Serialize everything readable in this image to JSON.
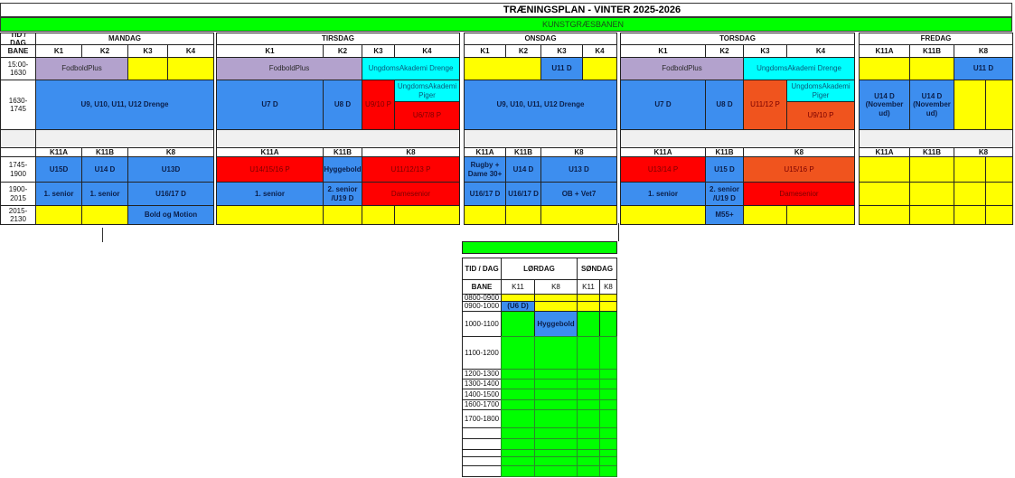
{
  "colors": {
    "w": "#ffffff",
    "g": "#f0f0f0",
    "y": "#ffff00",
    "b": "#3d8eef",
    "p": "#b3a2cd",
    "c": "#00ffff",
    "r": "#ff0000",
    "o": "#f0541e",
    "gr": "#00ff00"
  },
  "main": {
    "title": "TRÆNINGSPLAN - VINTER 2025-2026",
    "banner": "KUNSTGRÆSBANEN",
    "cells": [
      {
        "t": "TID / DAG",
        "c": "w"
      },
      {
        "t": "BANE",
        "c": "w"
      },
      {
        "t": "15:00-1630",
        "c": "w"
      },
      {
        "t": "1630-1745",
        "c": "w"
      },
      {
        "t": "",
        "c": "g"
      },
      {
        "t": "",
        "c": "w"
      },
      {
        "t": "1745-1900",
        "c": "w"
      },
      {
        "t": "1900-2015",
        "c": "w"
      },
      {
        "t": "2015-2130",
        "c": "w"
      },
      {
        "t": "MANDAG",
        "c": "w"
      },
      {
        "t": "TIRSDAG",
        "c": "w"
      },
      {
        "t": "ONSDAG",
        "c": "w"
      },
      {
        "t": "TORSDAG",
        "c": "w"
      },
      {
        "t": "FREDAG",
        "c": "w"
      },
      {
        "t": "K1",
        "c": "w"
      },
      {
        "t": "K2",
        "c": "w"
      },
      {
        "t": "K3",
        "c": "w"
      },
      {
        "t": "K4",
        "c": "w"
      },
      {
        "t": "K1",
        "c": "w"
      },
      {
        "t": "K2",
        "c": "w"
      },
      {
        "t": "K3",
        "c": "w"
      },
      {
        "t": "K4",
        "c": "w"
      },
      {
        "t": "K1",
        "c": "w"
      },
      {
        "t": "K2",
        "c": "w"
      },
      {
        "t": "K3",
        "c": "w"
      },
      {
        "t": "K4",
        "c": "w"
      },
      {
        "t": "K1",
        "c": "w"
      },
      {
        "t": "K2",
        "c": "w"
      },
      {
        "t": "K3",
        "c": "w"
      },
      {
        "t": "K4",
        "c": "w"
      },
      {
        "t": "K11A",
        "c": "w"
      },
      {
        "t": "K11B",
        "c": "w"
      },
      {
        "t": "K8",
        "c": "w"
      },
      {
        "t": "",
        "c": "g"
      },
      {
        "t": "",
        "c": "g"
      },
      {
        "t": "",
        "c": "g"
      },
      {
        "t": "",
        "c": "g"
      },
      {
        "t": "",
        "c": "g"
      },
      {
        "t": "K11A",
        "c": "w"
      },
      {
        "t": "K11B",
        "c": "w"
      },
      {
        "t": "K8",
        "c": "w"
      },
      {
        "t": "K11A",
        "c": "w"
      },
      {
        "t": "K11B",
        "c": "w"
      },
      {
        "t": "K8",
        "c": "w"
      },
      {
        "t": "K11A",
        "c": "w"
      },
      {
        "t": "K11B",
        "c": "w"
      },
      {
        "t": "K8",
        "c": "w"
      },
      {
        "t": "K11A",
        "c": "w"
      },
      {
        "t": "K11B",
        "c": "w"
      },
      {
        "t": "K8",
        "c": "w"
      },
      {
        "t": "K11A",
        "c": "w"
      },
      {
        "t": "K11B",
        "c": "w"
      },
      {
        "t": "K8",
        "c": "w"
      },
      {
        "t": "FodboldPlus",
        "c": "p"
      },
      {
        "t": "",
        "c": "y"
      },
      {
        "t": "",
        "c": "y"
      },
      {
        "t": "U9, U10, U11, U12 Drenge",
        "c": "b"
      },
      {
        "t": "U15D",
        "c": "b"
      },
      {
        "t": "U14 D",
        "c": "b"
      },
      {
        "t": "U13D",
        "c": "b"
      },
      {
        "t": "1. senior",
        "c": "b"
      },
      {
        "t": "1. senior",
        "c": "b"
      },
      {
        "t": "U16/17 D",
        "c": "b"
      },
      {
        "t": "",
        "c": "y"
      },
      {
        "t": "",
        "c": "y"
      },
      {
        "t": "Bold og Motion",
        "c": "b"
      },
      {
        "t": "FodboldPlus",
        "c": "p"
      },
      {
        "t": "UngdomsAkademi Drenge",
        "c": "c"
      },
      {
        "t": "U7 D",
        "c": "b"
      },
      {
        "t": "U8 D",
        "c": "b"
      },
      {
        "t": "U9/10 P",
        "c": "r"
      },
      {
        "t": "UngdomsAkademi Piger",
        "c": "c"
      },
      {
        "t": "U6/7/8 P",
        "c": "r"
      },
      {
        "t": "U14/15/16 P",
        "c": "r"
      },
      {
        "t": "Hyggebold",
        "c": "b"
      },
      {
        "t": "U11/12/13 P",
        "c": "r"
      },
      {
        "t": "1. senior",
        "c": "b"
      },
      {
        "t": "2. senior /U19 D",
        "c": "b"
      },
      {
        "t": "Damesenior",
        "c": "r"
      },
      {
        "t": "",
        "c": "y"
      },
      {
        "t": "",
        "c": "y"
      },
      {
        "t": "",
        "c": "y"
      },
      {
        "t": "",
        "c": "y"
      },
      {
        "t": "",
        "c": "y"
      },
      {
        "t": "U11 D",
        "c": "b"
      },
      {
        "t": "",
        "c": "y"
      },
      {
        "t": "U9, U10, U11, U12 Drenge",
        "c": "b"
      },
      {
        "t": "Rugby + Dame 30+",
        "c": "b"
      },
      {
        "t": "U14 D",
        "c": "b"
      },
      {
        "t": "U13 D",
        "c": "b"
      },
      {
        "t": "U16/17 D",
        "c": "b"
      },
      {
        "t": "U16/17 D",
        "c": "b"
      },
      {
        "t": "OB + Vet7",
        "c": "b"
      },
      {
        "t": "",
        "c": "y"
      },
      {
        "t": "",
        "c": "y"
      },
      {
        "t": "",
        "c": "y"
      },
      {
        "t": "FodboldPlus",
        "c": "p"
      },
      {
        "t": "UngdomsAkademi Drenge",
        "c": "c"
      },
      {
        "t": "U7 D",
        "c": "b"
      },
      {
        "t": "U8 D",
        "c": "b"
      },
      {
        "t": "U11/12 P",
        "c": "o"
      },
      {
        "t": "UngdomsAkademi Piger",
        "c": "c"
      },
      {
        "t": "U9/10 P",
        "c": "o"
      },
      {
        "t": "U13/14 P",
        "c": "r"
      },
      {
        "t": "U15 D",
        "c": "b"
      },
      {
        "t": "U15/16 P",
        "c": "o"
      },
      {
        "t": "1. senior",
        "c": "b"
      },
      {
        "t": "2. senior /U19 D",
        "c": "b"
      },
      {
        "t": "Damesenior",
        "c": "r"
      },
      {
        "t": "",
        "c": "y"
      },
      {
        "t": "M55+",
        "c": "b"
      },
      {
        "t": "",
        "c": "y"
      },
      {
        "t": "",
        "c": "y"
      },
      {
        "t": "",
        "c": "y"
      },
      {
        "t": "",
        "c": "y"
      },
      {
        "t": "U11 D",
        "c": "b"
      },
      {
        "t": "U14 D (November ud)",
        "c": "b"
      },
      {
        "t": "U14 D (November ud)",
        "c": "b"
      },
      {
        "t": "",
        "c": "y"
      },
      {
        "t": "",
        "c": "y"
      },
      {
        "t": "",
        "c": "y"
      },
      {
        "t": "",
        "c": "y"
      },
      {
        "t": "",
        "c": "y"
      },
      {
        "t": "",
        "c": "y"
      },
      {
        "t": "",
        "c": "y"
      },
      {
        "t": "",
        "c": "y"
      },
      {
        "t": "",
        "c": "y"
      },
      {
        "t": "",
        "c": "y"
      },
      {
        "t": "",
        "c": "y"
      },
      {
        "t": "",
        "c": "y"
      },
      {
        "t": "",
        "c": "y"
      },
      {
        "t": "",
        "c": "y"
      }
    ]
  },
  "weekend": {
    "cells": [
      {
        "t": "",
        "c": "gr"
      },
      {
        "t": "TID / DAG",
        "c": "w"
      },
      {
        "t": "LØRDAG",
        "c": "w"
      },
      {
        "t": "SØNDAG",
        "c": "w"
      },
      {
        "t": "BANE",
        "c": "w"
      },
      {
        "t": "K11",
        "c": "w"
      },
      {
        "t": "K8",
        "c": "w"
      },
      {
        "t": "K11",
        "c": "w"
      },
      {
        "t": "K8",
        "c": "w"
      },
      {
        "t": "0800-0900",
        "c": "w"
      },
      {
        "t": "0900-1000",
        "c": "w"
      },
      {
        "t": "1000-1100",
        "c": "w"
      },
      {
        "t": "1100-1200",
        "c": "w"
      },
      {
        "t": "1200-1300",
        "c": "w"
      },
      {
        "t": "1300-1400",
        "c": "w"
      },
      {
        "t": "1400-1500",
        "c": "w"
      },
      {
        "t": "1600-1700",
        "c": "w"
      },
      {
        "t": "1700-1800",
        "c": "w"
      },
      {
        "t": "",
        "c": "w"
      },
      {
        "t": "",
        "c": "w"
      },
      {
        "t": "",
        "c": "w"
      },
      {
        "t": "",
        "c": "w"
      },
      {
        "t": "",
        "c": "w"
      },
      {
        "t": "",
        "c": "y"
      },
      {
        "t": "",
        "c": "y"
      },
      {
        "t": "",
        "c": "y"
      },
      {
        "t": "",
        "c": "y"
      },
      {
        "t": "(U6 D)",
        "c": "b"
      },
      {
        "t": "",
        "c": "y"
      },
      {
        "t": "",
        "c": "y"
      },
      {
        "t": "",
        "c": "y"
      },
      {
        "t": "",
        "c": "gr"
      },
      {
        "t": "Hyggebold",
        "c": "b"
      },
      {
        "t": "",
        "c": "gr"
      },
      {
        "t": "",
        "c": "gr"
      }
    ]
  }
}
